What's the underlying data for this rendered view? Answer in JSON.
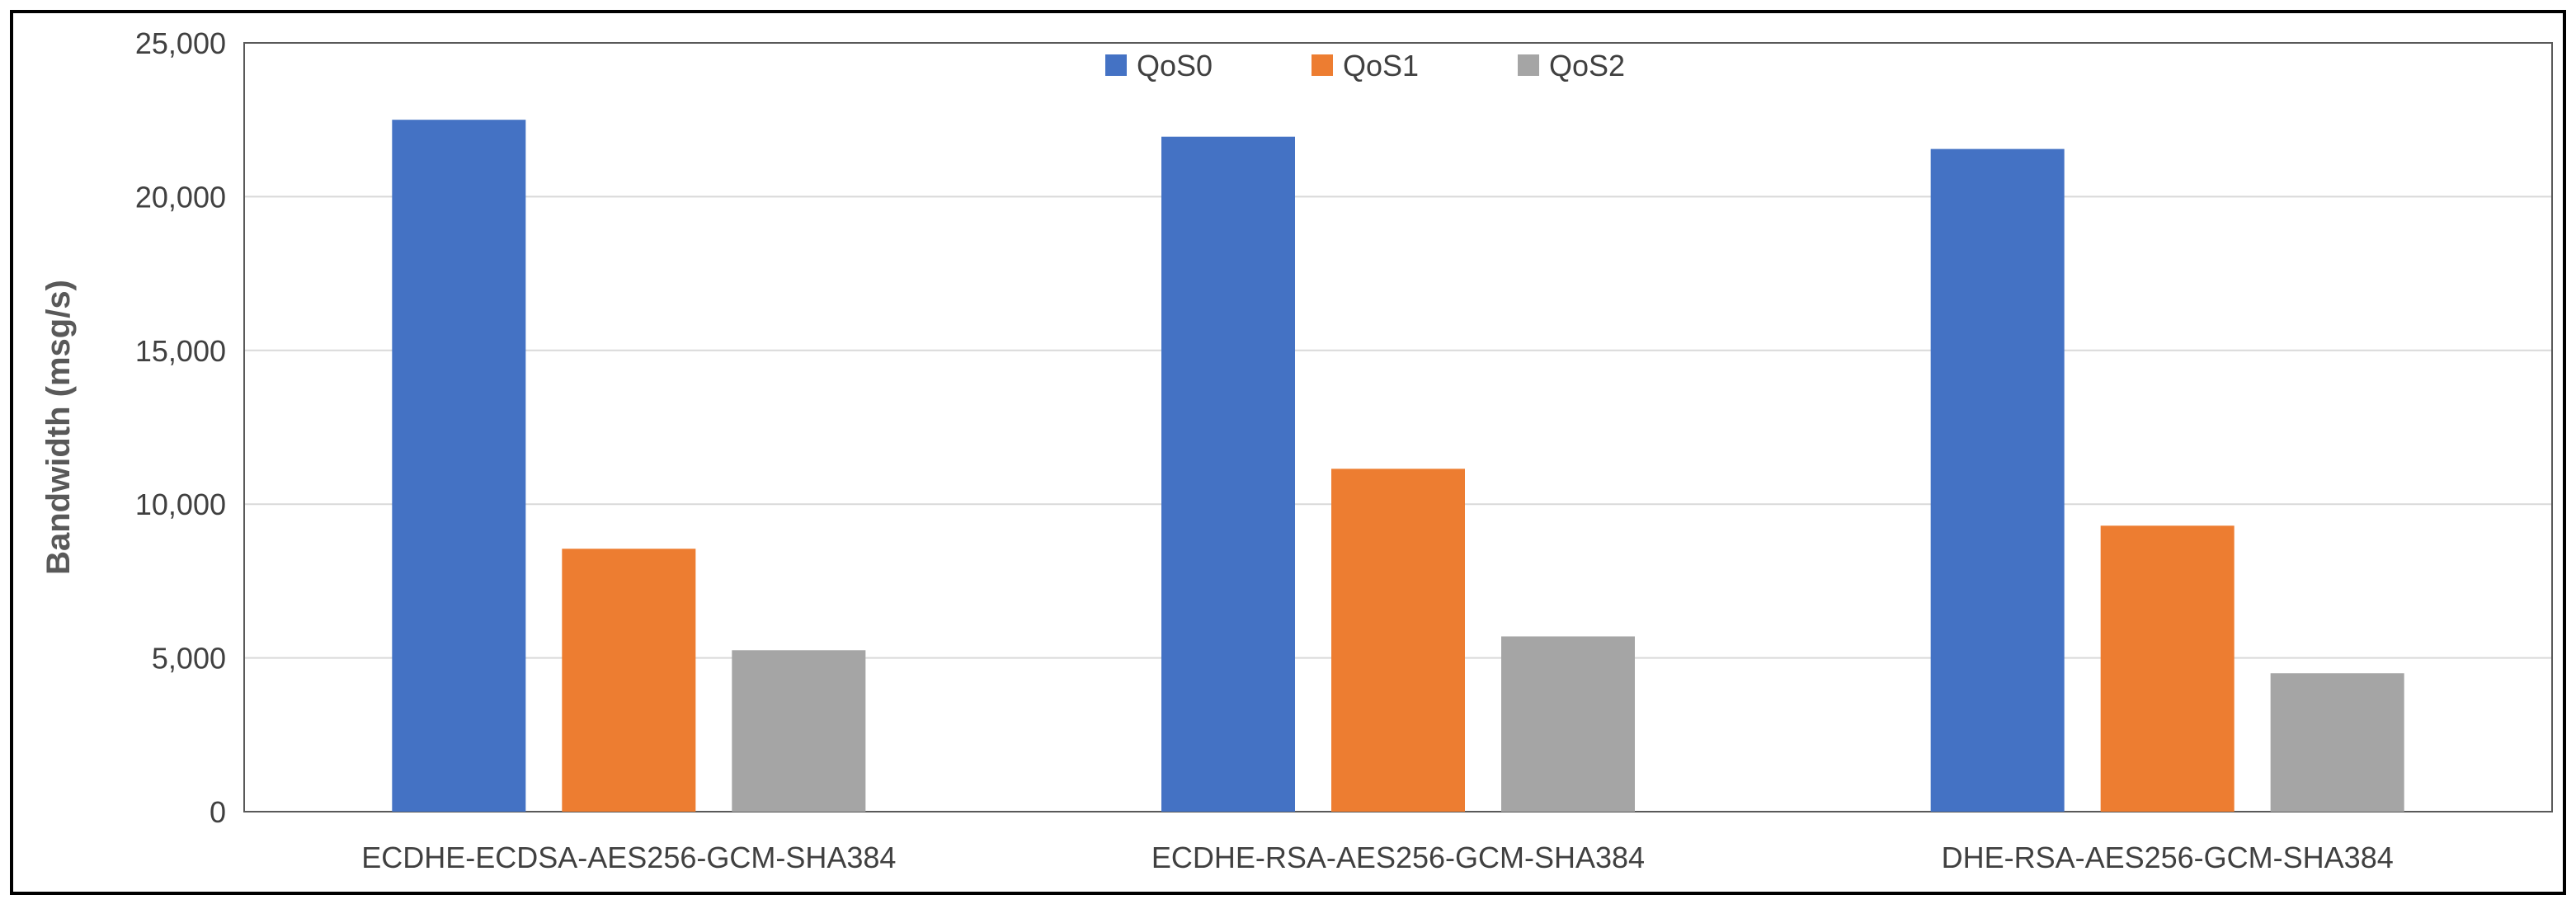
{
  "chart_data": {
    "type": "bar",
    "title": "",
    "xlabel": "",
    "ylabel": "Bandwidth (msg/s)",
    "categories": [
      "ECDHE-ECDSA-AES256-GCM-SHA384",
      "ECDHE-RSA-AES256-GCM-SHA384",
      "DHE-RSA-AES256-GCM-SHA384"
    ],
    "series": [
      {
        "name": "QoS0",
        "color": "#4472C4",
        "values": [
          22500,
          21950,
          21550
        ]
      },
      {
        "name": "QoS1",
        "color": "#ED7D31",
        "values": [
          8550,
          11150,
          9300
        ]
      },
      {
        "name": "QoS2",
        "color": "#A5A5A5",
        "values": [
          5250,
          5700,
          4500
        ]
      }
    ],
    "ylim": [
      0,
      25000
    ],
    "yticks": [
      0,
      5000,
      10000,
      15000,
      20000,
      25000
    ],
    "ytick_labels": [
      "0",
      "5,000",
      "10,000",
      "15,000",
      "20,000",
      "25,000"
    ],
    "grid": true,
    "legend_position": "top-center"
  }
}
